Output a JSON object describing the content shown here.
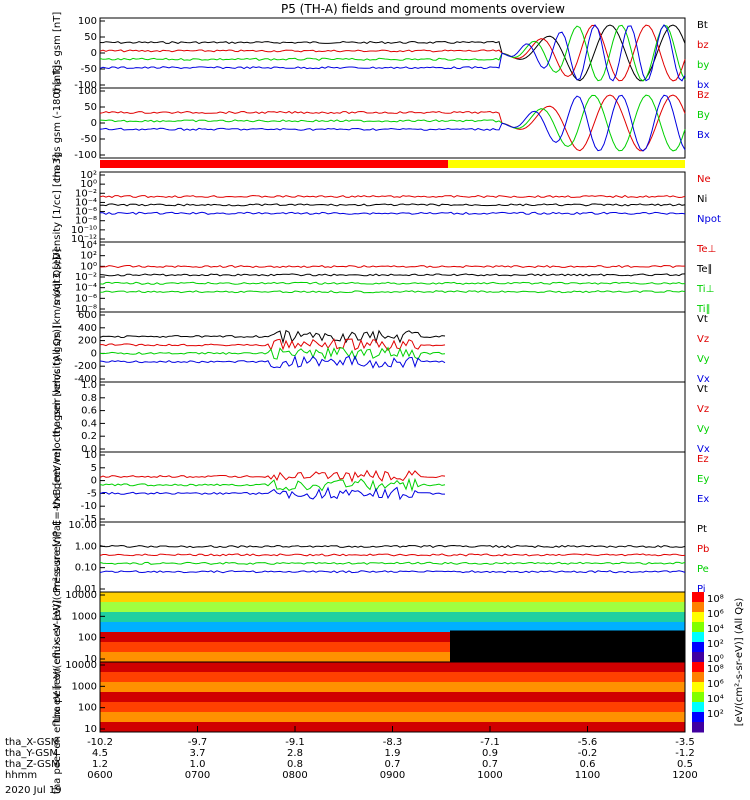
{
  "title": "P5 (TH-A) fields and ground moments overview",
  "date": "2020 Jul 19",
  "colors": {
    "black": "#000000",
    "red": "#e00000",
    "green": "#00d000",
    "blue": "#0000e0"
  },
  "chart_data": [
    {
      "type": "line",
      "ylabel": "tha fgs gsm [nT]",
      "ylim": [
        -100,
        100
      ],
      "ticks": [
        "100",
        "50",
        "0",
        "-50",
        "-100"
      ],
      "series": [
        {
          "name": "Bt",
          "color": "#000000"
        },
        {
          "name": "bz",
          "color": "#e00000"
        },
        {
          "name": "by",
          "color": "#00d000"
        },
        {
          "name": "bx",
          "color": "#0000e0"
        }
      ]
    },
    {
      "type": "line",
      "ylabel": "tha fgs gsm (-180) [nT]",
      "ylim": [
        -120,
        120
      ],
      "ticks": [
        "100",
        "50",
        "0",
        "-50",
        "-100"
      ],
      "series": [
        {
          "name": "Bz",
          "color": "#e00000"
        },
        {
          "name": "By",
          "color": "#00d000"
        },
        {
          "name": "Bx",
          "color": "#0000e0"
        }
      ]
    },
    {
      "type": "line",
      "ylabel": "Density [1/cc] [cm-3]",
      "scale": "log",
      "ticks": [
        "10²",
        "10⁰",
        "10⁻²",
        "10⁻⁴",
        "10⁻⁶",
        "10⁻⁸",
        "10⁻¹⁰",
        "10⁻¹²"
      ],
      "series": [
        {
          "name": "Ne",
          "color": "#e00000"
        },
        {
          "name": "Ni",
          "color": "#000000"
        },
        {
          "name": "Npot",
          "color": "#0000e0"
        }
      ]
    },
    {
      "type": "line",
      "ylabel": "moqt3 [eV]",
      "scale": "log",
      "ticks": [
        "10⁴",
        "10²",
        "10⁰",
        "10⁻²",
        "10⁻⁴",
        "10⁻⁶",
        "10⁻⁸"
      ],
      "series": [
        {
          "name": "Te⊥",
          "color": "#e00000"
        },
        {
          "name": "Te∥",
          "color": "#000000"
        },
        {
          "name": "Ti⊥",
          "color": "#00d000"
        },
        {
          "name": "Ti∥",
          "color": "#00d000"
        }
      ]
    },
    {
      "type": "line",
      "ylabel": "tha peir velocity gsm [km/s (All Qs)]",
      "ylim": [
        -400,
        600
      ],
      "ticks": [
        "600",
        "400",
        "200",
        "0",
        "-200",
        "-400"
      ],
      "series": [
        {
          "name": "Vt",
          "color": "#000000"
        },
        {
          "name": "Vz",
          "color": "#e00000"
        },
        {
          "name": "Vy",
          "color": "#00d000"
        },
        {
          "name": "Vx",
          "color": "#0000e0"
        }
      ]
    },
    {
      "type": "line",
      "ylabel": "tha peer velocity gsm [km/s (All Qs)]",
      "ylim": [
        0,
        1
      ],
      "ticks": [
        "1.0",
        "0.8",
        "0.6",
        "0.4",
        "0.2",
        "0.0"
      ],
      "series": [
        {
          "name": "Vt",
          "color": "#000000"
        },
        {
          "name": "Vz",
          "color": "#e00000"
        },
        {
          "name": "Vy",
          "color": "#00d000"
        },
        {
          "name": "Vx",
          "color": "#0000e0"
        }
      ]
    },
    {
      "type": "line",
      "ylabel": "E=-VxB [mV/m]",
      "ylim": [
        -15,
        10
      ],
      "ticks": [
        "10",
        "5",
        "0",
        "-5",
        "-10",
        "-15"
      ],
      "series": [
        {
          "name": "Ez",
          "color": "#e00000"
        },
        {
          "name": "Ey",
          "color": "#00d000"
        },
        {
          "name": "Ex",
          "color": "#0000e0"
        }
      ]
    },
    {
      "type": "line",
      "ylabel": "Pressure [nPa]",
      "scale": "log",
      "ticks": [
        "10.00",
        "1.00",
        "0.10",
        "0.01"
      ],
      "series": [
        {
          "name": "Pt",
          "color": "#000000"
        },
        {
          "name": "Pb",
          "color": "#e00000"
        },
        {
          "name": "Pe",
          "color": "#00d000"
        },
        {
          "name": "Pi",
          "color": "#0000e0"
        }
      ],
      "side_label": "(All Qs)"
    },
    {
      "type": "heatmap",
      "ylabel": "tha peir en eflux eV [eV/(cm²-s-sr-eV)]",
      "ticks": [
        "10000",
        "1000",
        "100",
        "10"
      ],
      "colorbar_ticks": [
        "10⁸",
        "10⁶",
        "10⁴",
        "10²",
        "10⁰"
      ]
    },
    {
      "type": "heatmap",
      "ylabel": "tha peer en eflux eV [eV/(cm²-s-sr-eV)]",
      "ticks": [
        "10000",
        "1000",
        "100",
        "10"
      ],
      "colorbar_ticks": [
        "10⁸",
        "10⁶",
        "10⁴",
        "10²"
      ]
    }
  ],
  "colorbar_label": "[eV/(cm²-s-sr-eV)] (All Qs)",
  "x_axis": {
    "rows": [
      {
        "label": "tha_X-GSM",
        "values": [
          "-10.2",
          "-9.7",
          "-9.1",
          "-8.3",
          "-7.1",
          "-5.6",
          "-3.5"
        ]
      },
      {
        "label": "tha_Y-GSM",
        "values": [
          "4.5",
          "3.7",
          "2.8",
          "1.9",
          "0.9",
          "-0.2",
          "-1.2"
        ]
      },
      {
        "label": "tha_Z-GSM",
        "values": [
          "1.2",
          "1.0",
          "0.8",
          "0.7",
          "0.7",
          "0.6",
          "0.5"
        ]
      },
      {
        "label": "hhmm",
        "values": [
          "0600",
          "0700",
          "0800",
          "0900",
          "1000",
          "1100",
          "1200"
        ]
      }
    ]
  }
}
